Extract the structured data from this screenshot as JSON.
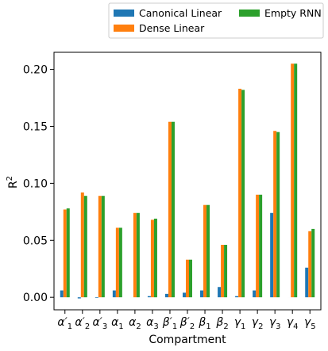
{
  "chart_data": {
    "type": "bar",
    "xlabel": "Compartment",
    "ylabel": "R",
    "ylabel_sup": "2",
    "categories": [
      {
        "base": "α",
        "prime": "′",
        "sub": "1"
      },
      {
        "base": "α",
        "prime": "′",
        "sub": "2"
      },
      {
        "base": "α",
        "prime": "′",
        "sub": "3"
      },
      {
        "base": "α",
        "prime": "",
        "sub": "1"
      },
      {
        "base": "α",
        "prime": "",
        "sub": "2"
      },
      {
        "base": "α",
        "prime": "",
        "sub": "3"
      },
      {
        "base": "β",
        "prime": "′",
        "sub": "1"
      },
      {
        "base": "β",
        "prime": "′",
        "sub": "2"
      },
      {
        "base": "β",
        "prime": "",
        "sub": "1"
      },
      {
        "base": "β",
        "prime": "",
        "sub": "2"
      },
      {
        "base": "γ",
        "prime": "",
        "sub": "1"
      },
      {
        "base": "γ",
        "prime": "",
        "sub": "2"
      },
      {
        "base": "γ",
        "prime": "",
        "sub": "3"
      },
      {
        "base": "γ",
        "prime": "",
        "sub": "4"
      },
      {
        "base": "γ",
        "prime": "",
        "sub": "5"
      }
    ],
    "ylim": [
      -0.011,
      0.215
    ],
    "yticks": [
      0.0,
      0.05,
      0.1,
      0.15,
      0.2
    ],
    "ytick_labels": [
      "0.00",
      "0.05",
      "0.10",
      "0.15",
      "0.20"
    ],
    "grid": false,
    "legend_placement": "top, above plot",
    "series": [
      {
        "name": "Canonical Linear",
        "color": "#1f77b4",
        "values": [
          0.006,
          -0.001,
          -0.0005,
          0.006,
          0.0,
          0.001,
          0.003,
          0.004,
          0.006,
          0.009,
          0.001,
          0.006,
          0.074,
          0.0,
          0.026
        ]
      },
      {
        "name": "Dense Linear",
        "color": "#ff7f0e",
        "values": [
          0.077,
          0.092,
          0.089,
          0.061,
          0.074,
          0.068,
          0.154,
          0.033,
          0.081,
          0.046,
          0.183,
          0.09,
          0.146,
          0.205,
          0.058
        ]
      },
      {
        "name": "Empty RNN",
        "color": "#2ca02c",
        "values": [
          0.078,
          0.089,
          0.089,
          0.061,
          0.074,
          0.069,
          0.154,
          0.033,
          0.081,
          0.046,
          0.182,
          0.09,
          0.145,
          0.205,
          0.06
        ]
      }
    ]
  }
}
